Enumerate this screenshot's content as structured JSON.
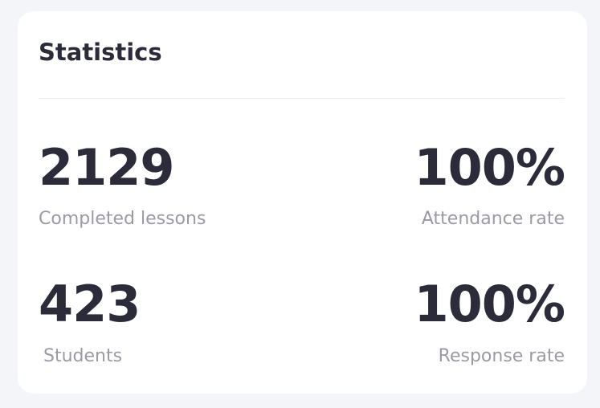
{
  "header": {
    "title": "Statistics"
  },
  "stats": [
    {
      "value": "2129",
      "label": "Completed lessons"
    },
    {
      "value": "100%",
      "label": "Attendance rate"
    },
    {
      "value": "423",
      "label": "Students"
    },
    {
      "value": "100%",
      "label": "Response rate"
    }
  ]
}
